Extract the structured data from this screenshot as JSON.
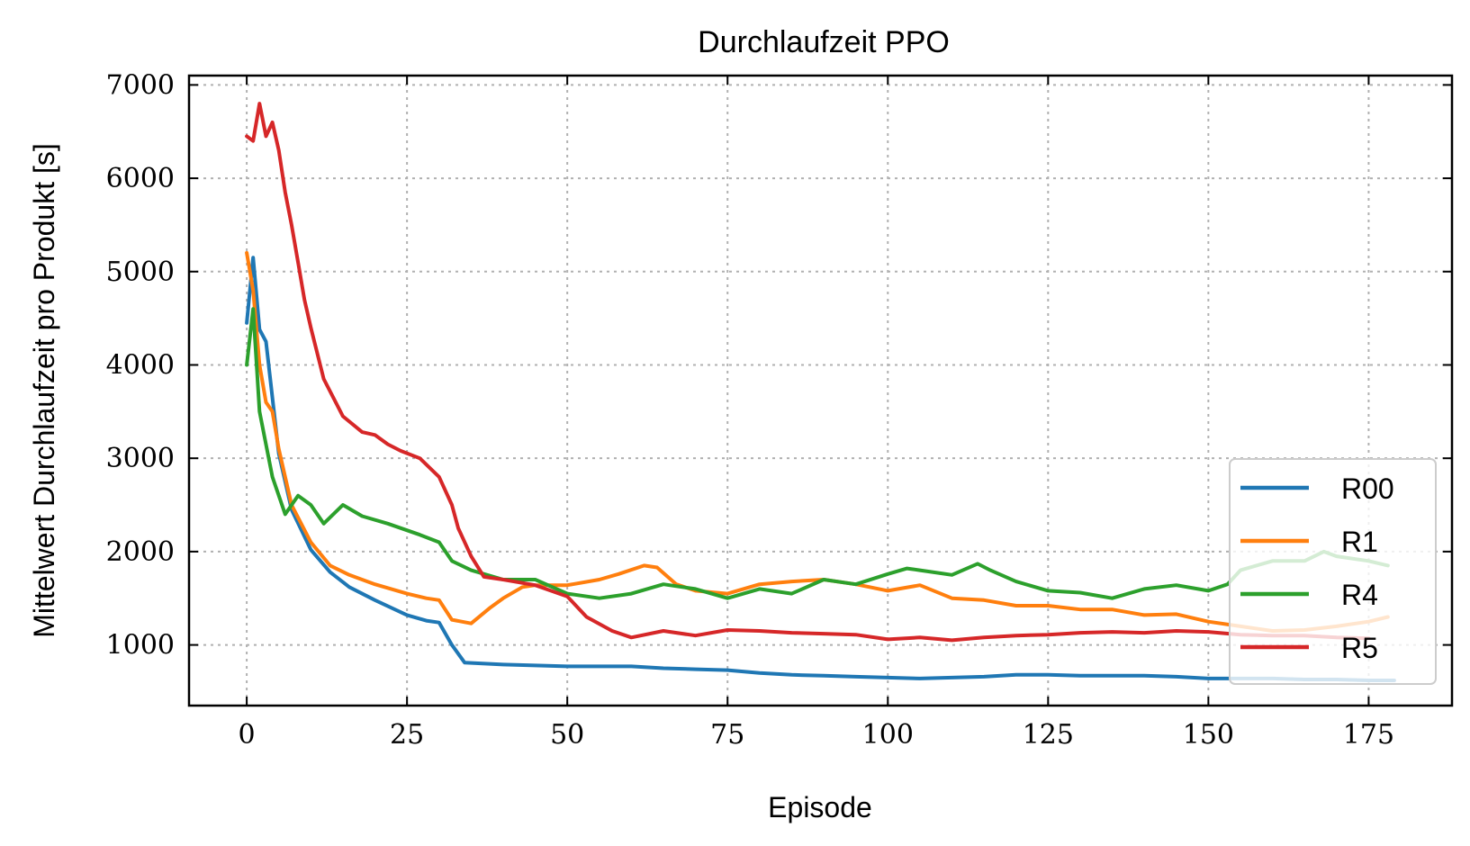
{
  "chart_data": {
    "type": "line",
    "title": "Durchlaufzeit PPO",
    "xlabel": "Episode",
    "ylabel": "Mittelwert Durchlaufzeit pro Produkt [s]",
    "xlim": [
      -9,
      188
    ],
    "ylim": [
      350,
      7100
    ],
    "xticks": [
      0,
      25,
      50,
      75,
      100,
      125,
      150,
      175
    ],
    "yticks": [
      1000,
      2000,
      3000,
      4000,
      5000,
      6000,
      7000
    ],
    "grid": true,
    "legend_position": "lower-right",
    "series": [
      {
        "name": "R00",
        "color": "#1f77b4",
        "x": [
          0,
          1,
          2,
          3,
          5,
          7,
          10,
          13,
          16,
          20,
          25,
          28,
          30,
          32,
          34,
          40,
          50,
          60,
          65,
          70,
          75,
          80,
          85,
          90,
          95,
          100,
          105,
          110,
          115,
          120,
          125,
          130,
          135,
          140,
          145,
          150,
          155,
          160,
          165,
          170,
          175,
          179
        ],
        "y": [
          4450,
          5150,
          4380,
          4250,
          3050,
          2450,
          2020,
          1780,
          1620,
          1480,
          1320,
          1260,
          1240,
          1000,
          810,
          790,
          770,
          770,
          750,
          740,
          730,
          700,
          680,
          670,
          660,
          650,
          640,
          650,
          660,
          680,
          680,
          670,
          670,
          670,
          660,
          640,
          640,
          640,
          630,
          630,
          620,
          620
        ]
      },
      {
        "name": "R1",
        "color": "#ff7f0e",
        "x": [
          0,
          1,
          2,
          3,
          4,
          5,
          7,
          10,
          13,
          16,
          20,
          25,
          28,
          30,
          32,
          35,
          38,
          40,
          43,
          45,
          50,
          55,
          58,
          62,
          64,
          67,
          70,
          75,
          80,
          85,
          90,
          95,
          100,
          105,
          110,
          115,
          120,
          125,
          130,
          135,
          140,
          145,
          150,
          155,
          160,
          165,
          170,
          175,
          178
        ],
        "y": [
          5200,
          4800,
          4000,
          3600,
          3500,
          3100,
          2500,
          2100,
          1850,
          1750,
          1650,
          1550,
          1500,
          1480,
          1270,
          1230,
          1400,
          1500,
          1620,
          1640,
          1640,
          1700,
          1760,
          1850,
          1830,
          1650,
          1580,
          1550,
          1650,
          1680,
          1700,
          1650,
          1580,
          1640,
          1500,
          1480,
          1420,
          1420,
          1380,
          1380,
          1320,
          1330,
          1250,
          1200,
          1150,
          1160,
          1200,
          1250,
          1300
        ]
      },
      {
        "name": "R4",
        "color": "#2ca02c",
        "x": [
          0,
          1,
          2,
          4,
          6,
          8,
          10,
          12,
          15,
          18,
          22,
          27,
          30,
          32,
          35,
          40,
          45,
          50,
          55,
          60,
          65,
          70,
          75,
          80,
          85,
          90,
          95,
          100,
          103,
          105,
          110,
          114,
          116,
          120,
          125,
          130,
          135,
          140,
          145,
          150,
          153,
          155,
          160,
          165,
          168,
          170,
          175,
          178
        ],
        "y": [
          4000,
          4600,
          3500,
          2800,
          2400,
          2600,
          2500,
          2300,
          2500,
          2380,
          2300,
          2180,
          2100,
          1900,
          1800,
          1700,
          1700,
          1550,
          1500,
          1550,
          1650,
          1600,
          1500,
          1600,
          1550,
          1700,
          1650,
          1760,
          1820,
          1800,
          1750,
          1870,
          1800,
          1680,
          1580,
          1560,
          1500,
          1600,
          1640,
          1580,
          1650,
          1800,
          1900,
          1900,
          2000,
          1950,
          1900,
          1850
        ]
      },
      {
        "name": "R5",
        "color": "#d62728",
        "x": [
          0,
          1,
          2,
          3,
          4,
          5,
          6,
          7,
          8,
          9,
          10,
          12,
          15,
          18,
          20,
          22,
          24,
          27,
          30,
          32,
          33,
          35,
          37,
          40,
          45,
          50,
          53,
          57,
          60,
          65,
          70,
          75,
          80,
          85,
          90,
          95,
          100,
          105,
          110,
          115,
          120,
          125,
          130,
          135,
          140,
          145,
          150,
          155,
          160,
          165,
          170,
          175
        ],
        "y": [
          6450,
          6400,
          6800,
          6450,
          6600,
          6300,
          5850,
          5500,
          5100,
          4700,
          4400,
          3850,
          3450,
          3280,
          3250,
          3150,
          3080,
          3000,
          2800,
          2500,
          2250,
          1950,
          1730,
          1700,
          1640,
          1520,
          1300,
          1150,
          1080,
          1150,
          1100,
          1160,
          1150,
          1130,
          1120,
          1110,
          1060,
          1080,
          1050,
          1080,
          1100,
          1110,
          1130,
          1140,
          1130,
          1150,
          1140,
          1110,
          1100,
          1100,
          1080,
          1070
        ]
      }
    ]
  }
}
